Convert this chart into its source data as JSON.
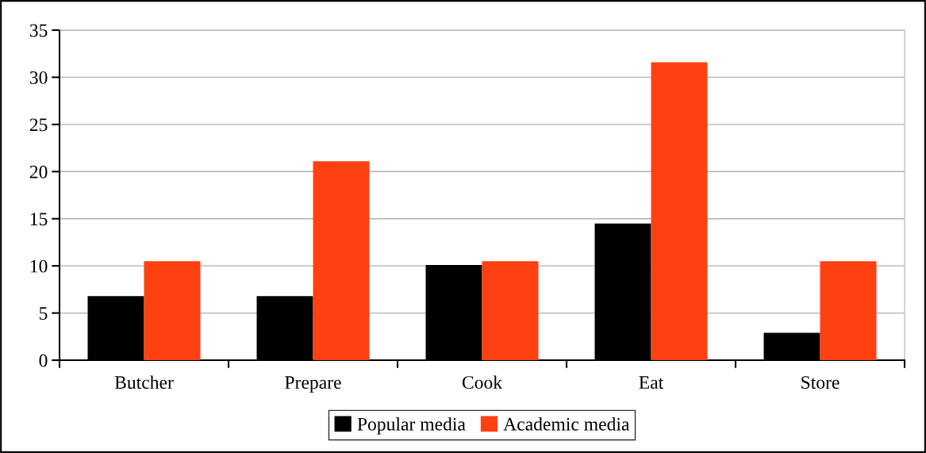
{
  "chart_data": {
    "type": "bar",
    "categories": [
      "Butcher",
      "Prepare",
      "Cook",
      "Eat",
      "Store"
    ],
    "series": [
      {
        "name": "Popular media",
        "color": "#000000",
        "values": [
          6.8,
          6.8,
          10.1,
          14.5,
          2.9
        ]
      },
      {
        "name": "Academic media",
        "color": "#ff4011",
        "values": [
          10.5,
          21.1,
          10.5,
          31.6,
          10.5
        ]
      }
    ],
    "ylim": [
      0,
      35
    ],
    "yticks": [
      0,
      5,
      10,
      15,
      20,
      25,
      30,
      35
    ],
    "grid": "y",
    "legend": "bottom"
  }
}
